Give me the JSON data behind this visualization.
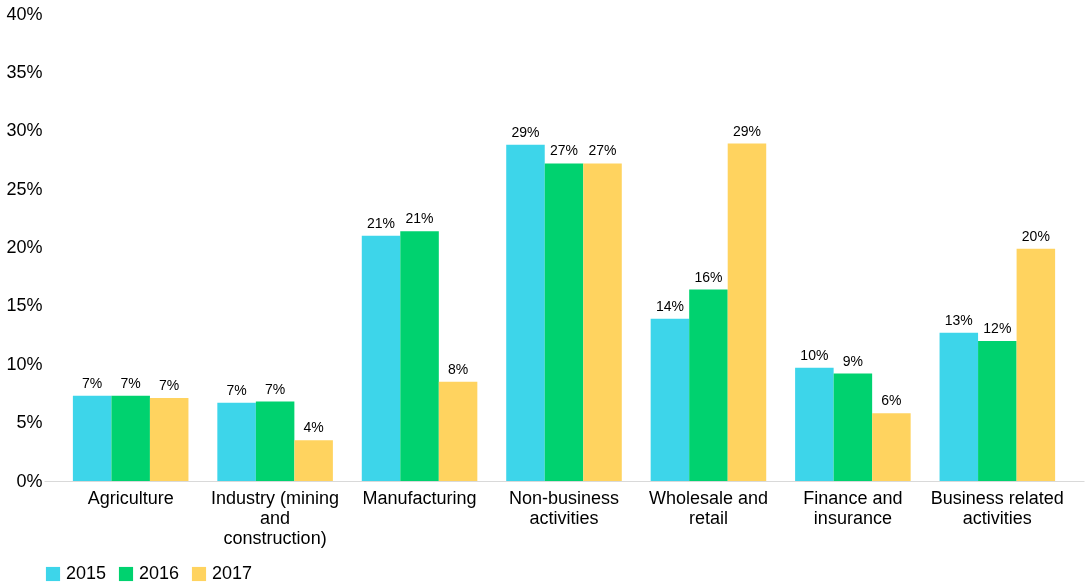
{
  "chart_data": {
    "type": "bar",
    "categories": [
      "Agriculture",
      "Industry (mining and construction)",
      "Manufacturing",
      "Non-business activities",
      "Wholesale and retail",
      "Finance and insurance",
      "Business related activities"
    ],
    "series": [
      {
        "name": "2015",
        "color": "#3dd5ea",
        "values": [
          7.3,
          6.7,
          21.0,
          28.8,
          13.9,
          9.7,
          12.7
        ],
        "value_labels": [
          "7%",
          "7%",
          "21%",
          "29%",
          "14%",
          "10%",
          "13%"
        ]
      },
      {
        "name": "2016",
        "color": "#00d26f",
        "values": [
          7.3,
          6.8,
          21.4,
          27.2,
          16.4,
          9.2,
          12.0
        ],
        "value_labels": [
          "7%",
          "7%",
          "21%",
          "27%",
          "16%",
          "9%",
          "12%"
        ]
      },
      {
        "name": "2017",
        "color": "#ffd35f",
        "values": [
          7.1,
          3.5,
          8.5,
          27.2,
          28.9,
          5.8,
          19.9
        ],
        "value_labels": [
          "7%",
          "4%",
          "8%",
          "27%",
          "29%",
          "6%",
          "20%"
        ]
      }
    ],
    "ylim": [
      0,
      40
    ],
    "yticks": [
      {
        "value": 0,
        "label": "0%"
      },
      {
        "value": 5,
        "label": "5%"
      },
      {
        "value": 10,
        "label": "10%"
      },
      {
        "value": 15,
        "label": "15%"
      },
      {
        "value": 20,
        "label": "20%"
      },
      {
        "value": 25,
        "label": "25%"
      },
      {
        "value": 30,
        "label": "30%"
      },
      {
        "value": 35,
        "label": "35%"
      },
      {
        "value": 40,
        "label": "40%"
      }
    ],
    "grid": false,
    "legend": "bottom"
  }
}
